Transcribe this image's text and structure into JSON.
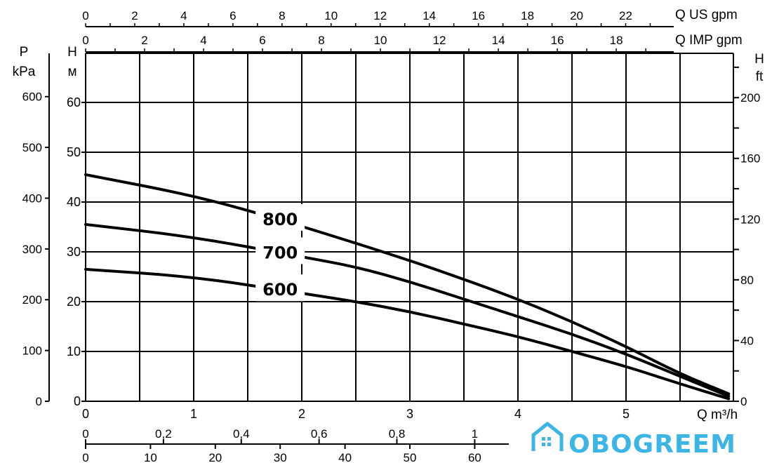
{
  "chart_data": {
    "type": "line",
    "x_unit_label": "Q m³/h",
    "xlim": [
      0,
      6.1
    ],
    "ylim": [
      0,
      70
    ],
    "left_axis_1": {
      "unit_line1": "P",
      "unit_line2": "kPa",
      "ticks": [
        0,
        100,
        200,
        300,
        400,
        500,
        600
      ]
    },
    "left_axis_2": {
      "unit_line1": "H",
      "unit_line2": "м",
      "ticks": [
        0,
        10,
        20,
        30,
        40,
        50,
        60
      ]
    },
    "right_axis": {
      "unit_line1": "H",
      "unit_line2": "ft",
      "ticks": [
        0,
        40,
        80,
        120,
        160,
        200
      ]
    },
    "x_ticks": [
      0,
      1,
      2,
      3,
      4,
      5
    ],
    "top_axis_1": {
      "label": "Q US gpm",
      "ticks": [
        0,
        2,
        4,
        6,
        8,
        10,
        12,
        14,
        16,
        18,
        20,
        22
      ]
    },
    "top_axis_2": {
      "label": "Q IMP gpm",
      "ticks": [
        0,
        2,
        4,
        6,
        8,
        10,
        12,
        14,
        16,
        18
      ]
    },
    "bottom_axis_1": {
      "ticks": [
        "0",
        "0,2",
        "0,4",
        "0,6",
        "0,8",
        "1"
      ]
    },
    "bottom_axis_2": {
      "ticks": [
        "0",
        "10",
        "20",
        "30",
        "40",
        "50",
        "60"
      ]
    },
    "series": [
      {
        "name": "800",
        "x": [
          0,
          1,
          1.8,
          2.9,
          3.5,
          4,
          4.5,
          5,
          5.5,
          5.95
        ],
        "y": [
          45.5,
          41.3,
          36.5,
          29,
          24.5,
          20.5,
          16,
          11,
          5.5,
          1.5
        ]
      },
      {
        "name": "700",
        "x": [
          0,
          1,
          2,
          2.5,
          3,
          3.5,
          4,
          4.5,
          5,
          5.5,
          5.95
        ],
        "y": [
          35.5,
          33,
          29,
          27,
          24,
          20.5,
          17,
          13.5,
          9.5,
          5,
          1
        ]
      },
      {
        "name": "600",
        "x": [
          0,
          1,
          2,
          2.5,
          3,
          3.5,
          4,
          4.5,
          5,
          5.5,
          5.95
        ],
        "y": [
          26.5,
          25,
          21.7,
          20,
          18,
          15.5,
          13,
          10,
          7,
          3.5,
          0.5
        ]
      }
    ]
  },
  "logo": {
    "text": "OBOGREEM",
    "color": "#3bb5e6"
  }
}
